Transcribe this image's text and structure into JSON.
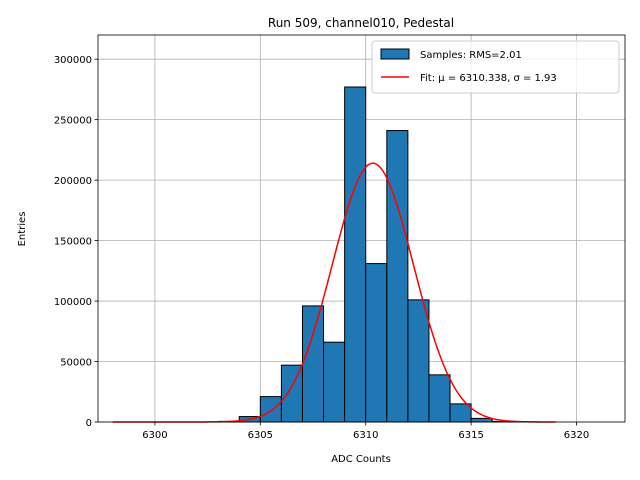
{
  "chart_data": {
    "type": "bar",
    "title": "Run 509, channel010, Pedestal",
    "xlabel": "ADC Counts",
    "ylabel": "Entries",
    "xlim": [
      6297.3,
      6322.3
    ],
    "ylim": [
      0,
      320000
    ],
    "xticks": [
      6300,
      6305,
      6310,
      6315,
      6320
    ],
    "yticks": [
      0,
      50000,
      100000,
      150000,
      200000,
      250000,
      300000
    ],
    "grid": true,
    "legend_position": "top-right",
    "histogram": {
      "name": "Samples: RMS=2.01",
      "color": "#1f77b4",
      "bin_edges": [
        6303,
        6304,
        6305,
        6306,
        6307,
        6308,
        6309,
        6310,
        6311,
        6312,
        6313,
        6314,
        6315,
        6316,
        6317
      ],
      "counts": [
        500,
        4500,
        21000,
        47000,
        96000,
        66000,
        277000,
        131000,
        241000,
        101000,
        39000,
        15000,
        3000,
        500
      ]
    },
    "fit": {
      "name": "Fit: μ = 6310.338, σ = 1.93",
      "color": "#ff0000",
      "mu": 6310.338,
      "sigma": 1.93,
      "amplitude": 214000,
      "x_range": [
        6298,
        6319
      ]
    }
  }
}
